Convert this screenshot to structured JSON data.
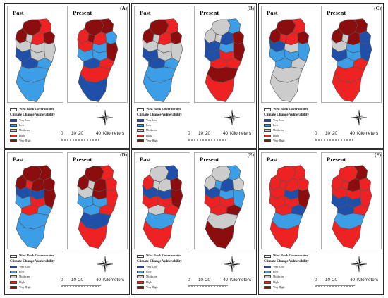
{
  "legend": {
    "outline_label": "West Bank Governorates",
    "title": "Climate Change Vulnerability",
    "classes": [
      {
        "label": "Very Low",
        "color": "#1f4fa8"
      },
      {
        "label": "Low",
        "color": "#3c9ee6"
      },
      {
        "label": "Moderate",
        "color": "#cccccc"
      },
      {
        "label": "High",
        "color": "#ee2222"
      },
      {
        "label": "Very High",
        "color": "#8b0d0d"
      }
    ]
  },
  "scale": {
    "ticks": [
      "0",
      "10",
      "20",
      "40"
    ],
    "unit": "Kilometers"
  },
  "north_arrow": "compass-rose-icon",
  "panels": [
    {
      "letter": "(A)",
      "past_title": "Past",
      "present_title": "Present",
      "past": [
        4,
        3,
        4,
        2,
        3,
        4,
        2,
        2,
        2,
        0,
        2,
        0,
        1,
        1,
        1
      ],
      "present": [
        4,
        4,
        3,
        4,
        3,
        1,
        3,
        1,
        4,
        1,
        1,
        0,
        3,
        3,
        0
      ]
    },
    {
      "letter": "(B)",
      "past_title": "Past",
      "present_title": "Present",
      "past": [
        4,
        3,
        4,
        2,
        3,
        4,
        2,
        2,
        2,
        0,
        2,
        0,
        1,
        1,
        1
      ],
      "present": [
        2,
        1,
        2,
        2,
        0,
        4,
        0,
        1,
        4,
        0,
        3,
        3,
        3,
        4,
        3
      ]
    },
    {
      "letter": "(C)",
      "past_title": "Past",
      "present_title": "Present",
      "past": [
        4,
        3,
        4,
        3,
        3,
        4,
        0,
        2,
        1,
        1,
        1,
        1,
        2,
        2,
        2
      ],
      "present": [
        4,
        4,
        4,
        2,
        4,
        0,
        2,
        1,
        0,
        0,
        1,
        1,
        3,
        3,
        3
      ]
    },
    {
      "letter": "(D)",
      "past_title": "Past",
      "present_title": "Present",
      "past": [
        4,
        4,
        4,
        3,
        4,
        4,
        0,
        0,
        4,
        1,
        3,
        3,
        1,
        1,
        1
      ],
      "present": [
        4,
        3,
        4,
        2,
        4,
        3,
        2,
        4,
        3,
        1,
        1,
        1,
        3,
        0,
        3
      ]
    },
    {
      "letter": "(E)",
      "past_title": "Past",
      "present_title": "Present",
      "past": [
        2,
        0,
        3,
        2,
        2,
        4,
        0,
        0,
        4,
        3,
        3,
        2,
        3,
        1,
        3
      ],
      "present": [
        2,
        1,
        2,
        1,
        0,
        2,
        0,
        1,
        1,
        3,
        3,
        3,
        4,
        2,
        4
      ]
    },
    {
      "letter": "(F)",
      "past_title": "Past",
      "present_title": "Present",
      "past": [
        3,
        3,
        3,
        3,
        3,
        3,
        3,
        0,
        4,
        3,
        3,
        3,
        0,
        1,
        3
      ],
      "present": [
        3,
        4,
        3,
        3,
        4,
        3,
        3,
        3,
        3,
        0,
        0,
        0,
        3,
        1,
        3
      ]
    }
  ]
}
